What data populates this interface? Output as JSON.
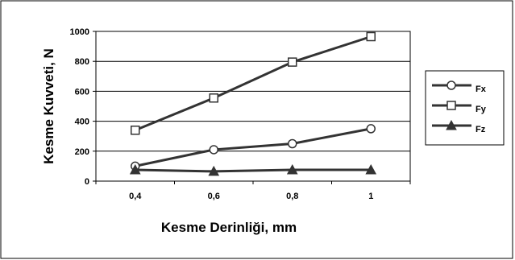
{
  "chart_data": {
    "type": "line",
    "title": "",
    "xlabel": "Kesme Derinliği, mm",
    "ylabel": "Kesme Kuvveti, N",
    "categories": [
      "0,4",
      "0,6",
      "0,8",
      "1"
    ],
    "ylim": [
      0,
      1000
    ],
    "yticks": [
      0,
      200,
      400,
      600,
      800,
      1000
    ],
    "grid": "horizontal",
    "legend": "right",
    "series": [
      {
        "name": "Fx",
        "marker": "circle",
        "color": "#333333",
        "values": [
          100,
          210,
          250,
          350
        ]
      },
      {
        "name": "Fy",
        "marker": "square",
        "color": "#333333",
        "values": [
          340,
          555,
          795,
          965
        ]
      },
      {
        "name": "Fz",
        "marker": "triangle",
        "color": "#333333",
        "values": [
          75,
          65,
          75,
          75
        ]
      }
    ]
  }
}
